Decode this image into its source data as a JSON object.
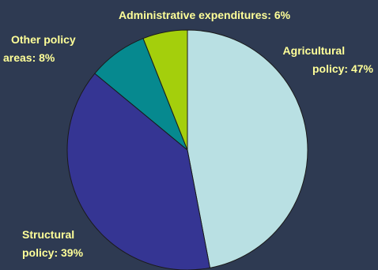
{
  "chart_data": {
    "type": "pie",
    "slices": [
      {
        "label_lines": [
          "Agricultural",
          "policy: 47%"
        ],
        "value": 47,
        "color": "#b9e0e3"
      },
      {
        "label_lines": [
          "Structural",
          "policy: 39%"
        ],
        "value": 39,
        "color": "#353593"
      },
      {
        "label_lines": [
          "Other policy",
          "areas: 8%"
        ],
        "value": 8,
        "color": "#06898f"
      },
      {
        "label_lines": [
          "Administrative expenditures: 6%"
        ],
        "value": 6,
        "color": "#a4cf0c"
      }
    ],
    "label_color": "#ffff99",
    "edge_color": "#1a1a1a",
    "background": "#2e3a52"
  }
}
